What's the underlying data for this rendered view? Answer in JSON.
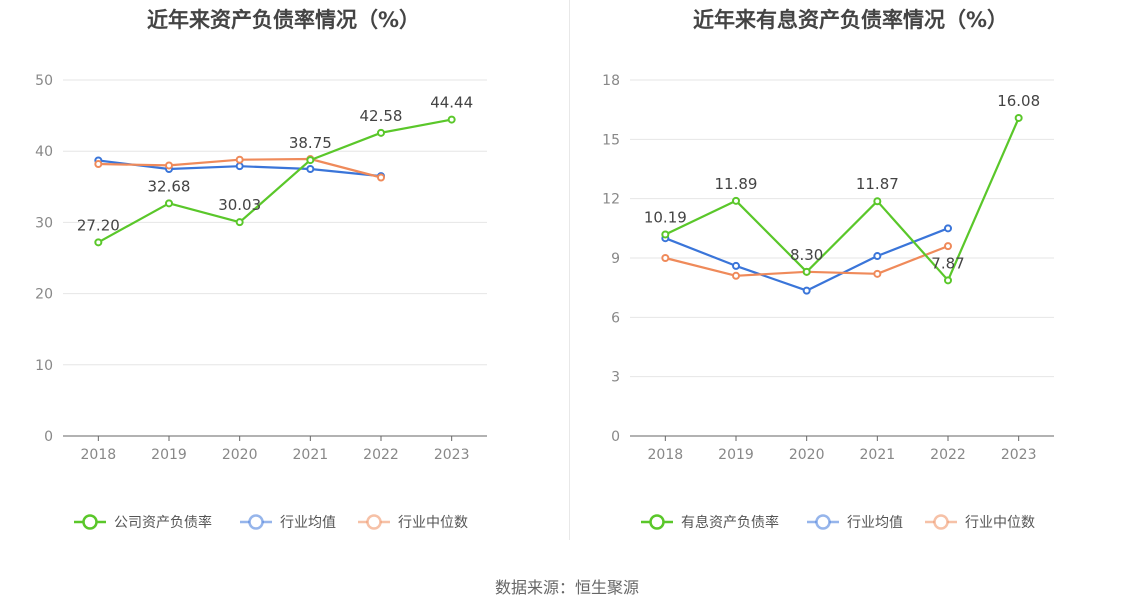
{
  "footer": {
    "source": "数据来源：恒生聚源"
  },
  "colors": {
    "company": "#5ac72a",
    "industry_avg": "#3a75d9",
    "industry_median": "#ef8a5a"
  },
  "chart_data": [
    {
      "type": "line",
      "title": "近年来资产负债率情况（%）",
      "categories": [
        "2018",
        "2019",
        "2020",
        "2021",
        "2022",
        "2023"
      ],
      "ylim": [
        0,
        50
      ],
      "yticks": [
        0,
        10,
        20,
        30,
        40,
        50
      ],
      "grid": true,
      "legend_position": "bottom",
      "series": [
        {
          "name": "公司资产负债率",
          "color": "#5ac72a",
          "values": [
            27.2,
            32.68,
            30.03,
            38.75,
            42.58,
            44.44
          ],
          "labels": [
            "27.20",
            "32.68",
            "30.03",
            "38.75",
            "42.58",
            "44.44"
          ]
        },
        {
          "name": "行业均值",
          "color": "#3a75d9",
          "values": [
            38.7,
            37.5,
            37.9,
            37.5,
            36.5,
            null
          ]
        },
        {
          "name": "行业中位数",
          "color": "#ef8a5a",
          "values": [
            38.2,
            38.0,
            38.8,
            38.9,
            36.3,
            null
          ]
        }
      ]
    },
    {
      "type": "line",
      "title": "近年来有息资产负债率情况（%）",
      "categories": [
        "2018",
        "2019",
        "2020",
        "2021",
        "2022",
        "2023"
      ],
      "ylim": [
        0,
        18
      ],
      "yticks": [
        0,
        3,
        6,
        9,
        12,
        15,
        18
      ],
      "grid": true,
      "legend_position": "bottom",
      "series": [
        {
          "name": "有息资产负债率",
          "color": "#5ac72a",
          "values": [
            10.19,
            11.89,
            8.3,
            11.87,
            7.87,
            16.08
          ],
          "labels": [
            "10.19",
            "11.89",
            "8.30",
            "11.87",
            "7.87",
            "16.08"
          ]
        },
        {
          "name": "行业均值",
          "color": "#3a75d9",
          "values": [
            10.0,
            8.6,
            7.35,
            9.1,
            10.5,
            null
          ]
        },
        {
          "name": "行业中位数",
          "color": "#ef8a5a",
          "values": [
            9.0,
            8.1,
            8.3,
            8.2,
            9.6,
            null
          ]
        }
      ]
    }
  ]
}
